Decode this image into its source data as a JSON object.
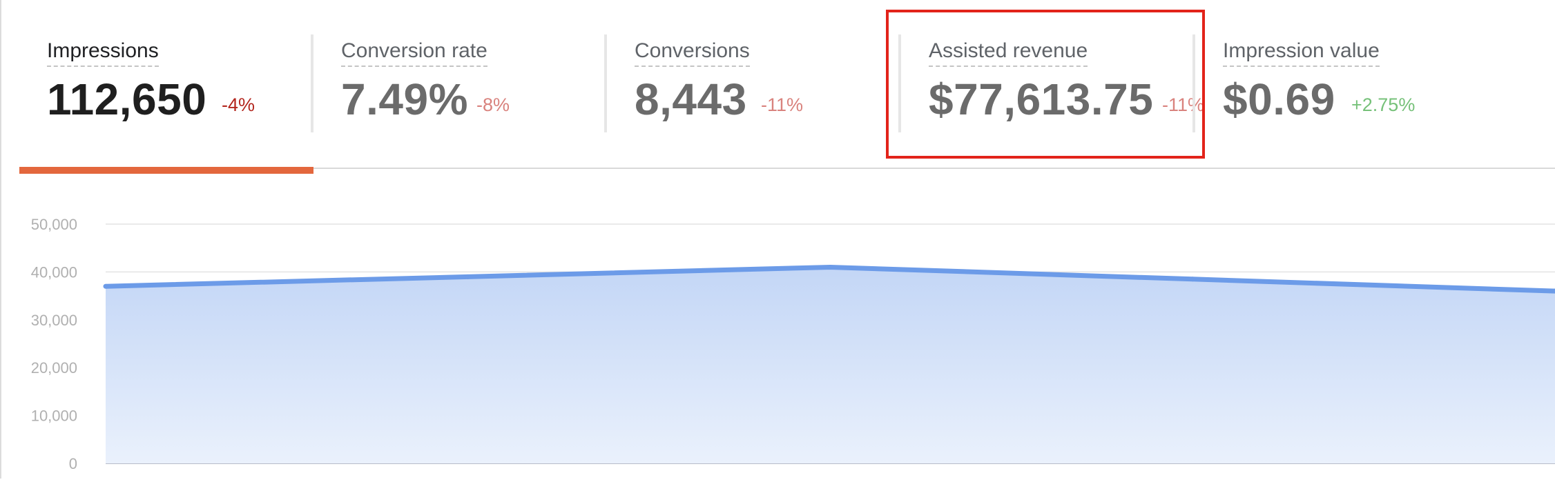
{
  "metrics": [
    {
      "label": "Impressions",
      "value": "112,650",
      "change": "-4%",
      "trend": "down",
      "active": true
    },
    {
      "label": "Conversion rate",
      "value": "7.49%",
      "change": "-8%",
      "trend": "down",
      "active": false
    },
    {
      "label": "Conversions",
      "value": "8,443",
      "change": "-11%",
      "trend": "down",
      "active": false
    },
    {
      "label": "Assisted revenue",
      "value": "$77,613.75",
      "change": "-11%",
      "trend": "down",
      "active": false,
      "highlighted": true
    },
    {
      "label": "Impression value",
      "value": "$0.69",
      "change": "+2.75%",
      "trend": "up",
      "active": false
    }
  ],
  "colors": {
    "active_indicator": "#e3673d",
    "highlight_box": "#e2231a",
    "negative_change": "#d9827d",
    "positive_change": "#76c179",
    "series_line": "#6c9be8",
    "series_fill": "#c6d8f6"
  },
  "chart_data": {
    "type": "area",
    "y_tick_labels": [
      "50,000",
      "40,000",
      "30,000",
      "20,000",
      "10,000",
      "0"
    ],
    "ylim": [
      0,
      50000
    ],
    "x": [
      0,
      1,
      2,
      3,
      4
    ],
    "series": [
      {
        "values": [
          37000,
          39000,
          41000,
          38500,
          36000
        ]
      }
    ],
    "grid": true
  }
}
